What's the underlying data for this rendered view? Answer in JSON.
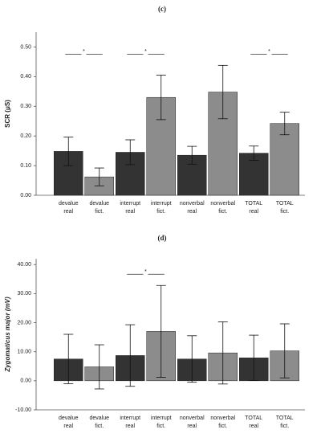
{
  "chart_data": [
    {
      "type": "bar",
      "title": "(c)",
      "ylabel": "SCR (μS)",
      "ylabel_italic": false,
      "categories": [
        "devalue real",
        "devalue fict.",
        "interrupt real",
        "interrupt fict.",
        "nonverbal real",
        "nonverbal fict.",
        "TOTAL real",
        "TOTAL fict."
      ],
      "values": [
        0.148,
        0.062,
        0.145,
        0.33,
        0.135,
        0.348,
        0.142,
        0.242
      ],
      "errors": [
        0.048,
        0.03,
        0.042,
        0.075,
        0.03,
        0.09,
        0.024,
        0.038
      ],
      "colors": [
        "#333333",
        "#8c8c8c",
        "#333333",
        "#8c8c8c",
        "#333333",
        "#8c8c8c",
        "#333333",
        "#8c8c8c"
      ],
      "ylim": [
        0,
        0.55
      ],
      "yticks": [
        {
          "value": 0,
          "label": "0.00"
        },
        {
          "value": 0.1,
          "label": "0.10"
        },
        {
          "value": 0.2,
          "label": "0.20"
        },
        {
          "value": 0.3,
          "label": "0.30"
        },
        {
          "value": 0.4,
          "label": "0.40"
        },
        {
          "value": 0.5,
          "label": "0.50"
        }
      ],
      "significance": [
        {
          "pair": [
            0,
            1
          ],
          "label": "*"
        },
        {
          "pair": [
            2,
            3
          ],
          "label": "*"
        },
        {
          "pair": [
            6,
            7
          ],
          "label": "*"
        }
      ]
    },
    {
      "type": "bar",
      "title": "(d)",
      "ylabel": "Zygomaticus major (mV)",
      "ylabel_italic": true,
      "categories": [
        "devalue real",
        "devalue fict.",
        "interrupt real",
        "interrupt fict.",
        "nonverbal real",
        "nonverbal fict.",
        "TOTAL real",
        "TOTAL fict."
      ],
      "values": [
        7.5,
        4.8,
        8.7,
        17.0,
        7.5,
        9.6,
        7.9,
        10.3
      ],
      "errors": [
        8.5,
        7.6,
        10.6,
        15.8,
        8.0,
        10.7,
        7.8,
        9.3
      ],
      "colors": [
        "#333333",
        "#8c8c8c",
        "#333333",
        "#8c8c8c",
        "#333333",
        "#8c8c8c",
        "#333333",
        "#8c8c8c"
      ],
      "ylim": [
        -10,
        42
      ],
      "yticks": [
        {
          "value": -10,
          "label": "-10.00"
        },
        {
          "value": 0,
          "label": "0.00"
        },
        {
          "value": 10,
          "label": "10.00"
        },
        {
          "value": 20,
          "label": "20.00"
        },
        {
          "value": 30,
          "label": "30.00"
        },
        {
          "value": 40,
          "label": "40.00"
        }
      ],
      "significance": [
        {
          "pair": [
            2,
            3
          ],
          "label": "*"
        }
      ]
    }
  ]
}
